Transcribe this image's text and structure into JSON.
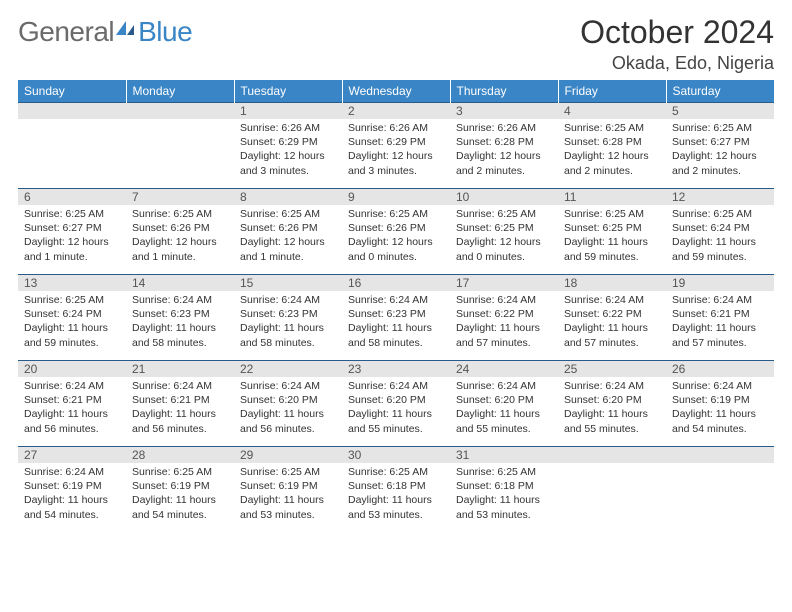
{
  "logo": {
    "textA": "General",
    "textB": "Blue"
  },
  "title": "October 2024",
  "location": "Okada, Edo, Nigeria",
  "colors": {
    "header_bg": "#3a85c6",
    "header_text": "#ffffff",
    "daynum_bg": "#e5e5e5",
    "border": "#2a5a8a",
    "body_text": "#333333",
    "logo_gray": "#6b6b6b",
    "logo_blue": "#3a85c6"
  },
  "weekdays": [
    "Sunday",
    "Monday",
    "Tuesday",
    "Wednesday",
    "Thursday",
    "Friday",
    "Saturday"
  ],
  "weeks": [
    [
      null,
      null,
      {
        "n": "1",
        "sr": "6:26 AM",
        "ss": "6:29 PM",
        "dl": "12 hours and 3 minutes."
      },
      {
        "n": "2",
        "sr": "6:26 AM",
        "ss": "6:29 PM",
        "dl": "12 hours and 3 minutes."
      },
      {
        "n": "3",
        "sr": "6:26 AM",
        "ss": "6:28 PM",
        "dl": "12 hours and 2 minutes."
      },
      {
        "n": "4",
        "sr": "6:25 AM",
        "ss": "6:28 PM",
        "dl": "12 hours and 2 minutes."
      },
      {
        "n": "5",
        "sr": "6:25 AM",
        "ss": "6:27 PM",
        "dl": "12 hours and 2 minutes."
      }
    ],
    [
      {
        "n": "6",
        "sr": "6:25 AM",
        "ss": "6:27 PM",
        "dl": "12 hours and 1 minute."
      },
      {
        "n": "7",
        "sr": "6:25 AM",
        "ss": "6:26 PM",
        "dl": "12 hours and 1 minute."
      },
      {
        "n": "8",
        "sr": "6:25 AM",
        "ss": "6:26 PM",
        "dl": "12 hours and 1 minute."
      },
      {
        "n": "9",
        "sr": "6:25 AM",
        "ss": "6:26 PM",
        "dl": "12 hours and 0 minutes."
      },
      {
        "n": "10",
        "sr": "6:25 AM",
        "ss": "6:25 PM",
        "dl": "12 hours and 0 minutes."
      },
      {
        "n": "11",
        "sr": "6:25 AM",
        "ss": "6:25 PM",
        "dl": "11 hours and 59 minutes."
      },
      {
        "n": "12",
        "sr": "6:25 AM",
        "ss": "6:24 PM",
        "dl": "11 hours and 59 minutes."
      }
    ],
    [
      {
        "n": "13",
        "sr": "6:25 AM",
        "ss": "6:24 PM",
        "dl": "11 hours and 59 minutes."
      },
      {
        "n": "14",
        "sr": "6:24 AM",
        "ss": "6:23 PM",
        "dl": "11 hours and 58 minutes."
      },
      {
        "n": "15",
        "sr": "6:24 AM",
        "ss": "6:23 PM",
        "dl": "11 hours and 58 minutes."
      },
      {
        "n": "16",
        "sr": "6:24 AM",
        "ss": "6:23 PM",
        "dl": "11 hours and 58 minutes."
      },
      {
        "n": "17",
        "sr": "6:24 AM",
        "ss": "6:22 PM",
        "dl": "11 hours and 57 minutes."
      },
      {
        "n": "18",
        "sr": "6:24 AM",
        "ss": "6:22 PM",
        "dl": "11 hours and 57 minutes."
      },
      {
        "n": "19",
        "sr": "6:24 AM",
        "ss": "6:21 PM",
        "dl": "11 hours and 57 minutes."
      }
    ],
    [
      {
        "n": "20",
        "sr": "6:24 AM",
        "ss": "6:21 PM",
        "dl": "11 hours and 56 minutes."
      },
      {
        "n": "21",
        "sr": "6:24 AM",
        "ss": "6:21 PM",
        "dl": "11 hours and 56 minutes."
      },
      {
        "n": "22",
        "sr": "6:24 AM",
        "ss": "6:20 PM",
        "dl": "11 hours and 56 minutes."
      },
      {
        "n": "23",
        "sr": "6:24 AM",
        "ss": "6:20 PM",
        "dl": "11 hours and 55 minutes."
      },
      {
        "n": "24",
        "sr": "6:24 AM",
        "ss": "6:20 PM",
        "dl": "11 hours and 55 minutes."
      },
      {
        "n": "25",
        "sr": "6:24 AM",
        "ss": "6:20 PM",
        "dl": "11 hours and 55 minutes."
      },
      {
        "n": "26",
        "sr": "6:24 AM",
        "ss": "6:19 PM",
        "dl": "11 hours and 54 minutes."
      }
    ],
    [
      {
        "n": "27",
        "sr": "6:24 AM",
        "ss": "6:19 PM",
        "dl": "11 hours and 54 minutes."
      },
      {
        "n": "28",
        "sr": "6:25 AM",
        "ss": "6:19 PM",
        "dl": "11 hours and 54 minutes."
      },
      {
        "n": "29",
        "sr": "6:25 AM",
        "ss": "6:19 PM",
        "dl": "11 hours and 53 minutes."
      },
      {
        "n": "30",
        "sr": "6:25 AM",
        "ss": "6:18 PM",
        "dl": "11 hours and 53 minutes."
      },
      {
        "n": "31",
        "sr": "6:25 AM",
        "ss": "6:18 PM",
        "dl": "11 hours and 53 minutes."
      },
      null,
      null
    ]
  ],
  "labels": {
    "sunrise": "Sunrise:",
    "sunset": "Sunset:",
    "daylight": "Daylight:"
  }
}
